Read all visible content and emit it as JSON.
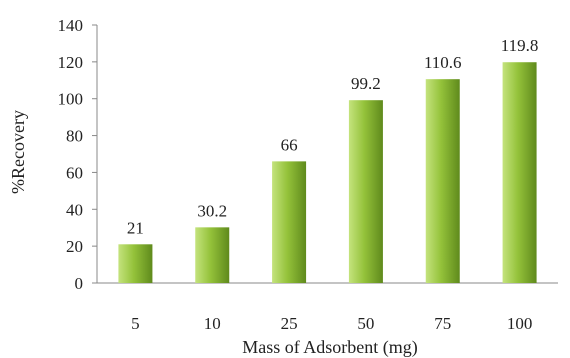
{
  "chart_data": {
    "type": "bar",
    "title": "",
    "xlabel": "Mass of Adsorbent (mg)",
    "ylabel": "%Recovery",
    "categories": [
      "5",
      "10",
      "25",
      "50",
      "75",
      "100"
    ],
    "values": [
      21,
      30.2,
      66,
      99.2,
      110.6,
      119.8
    ],
    "data_labels": [
      "21",
      "30.2",
      "66",
      "99.2",
      "110.6",
      "119.8"
    ],
    "ylim": [
      0,
      140
    ],
    "yticks": [
      "0",
      "20",
      "40",
      "60",
      "80",
      "100",
      "120",
      "140"
    ],
    "grid": false,
    "legend": "none",
    "colors": {
      "bar_light": "#c4e37d",
      "bar_mid": "#94c23a",
      "bar_dark": "#5f8a1c",
      "axis": "#888888"
    }
  }
}
